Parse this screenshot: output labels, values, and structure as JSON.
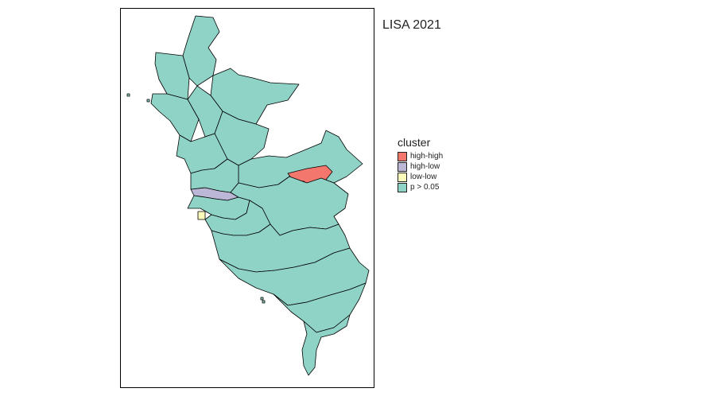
{
  "title": "LISA 2021",
  "legend": {
    "title": "cluster",
    "items": [
      {
        "label": "high-high",
        "color": "#f4776e"
      },
      {
        "label": "high-low",
        "color": "#bcb7d6"
      },
      {
        "label": "low-low",
        "color": "#fcfcbb"
      },
      {
        "label": "p > 0.05",
        "color": "#8fd3c7"
      }
    ]
  },
  "colors": {
    "not_significant": "#8fd3c7",
    "high_high": "#f4776e",
    "high_low": "#bcb7d6",
    "low_low": "#fcfcbb",
    "border": "#000000"
  }
}
